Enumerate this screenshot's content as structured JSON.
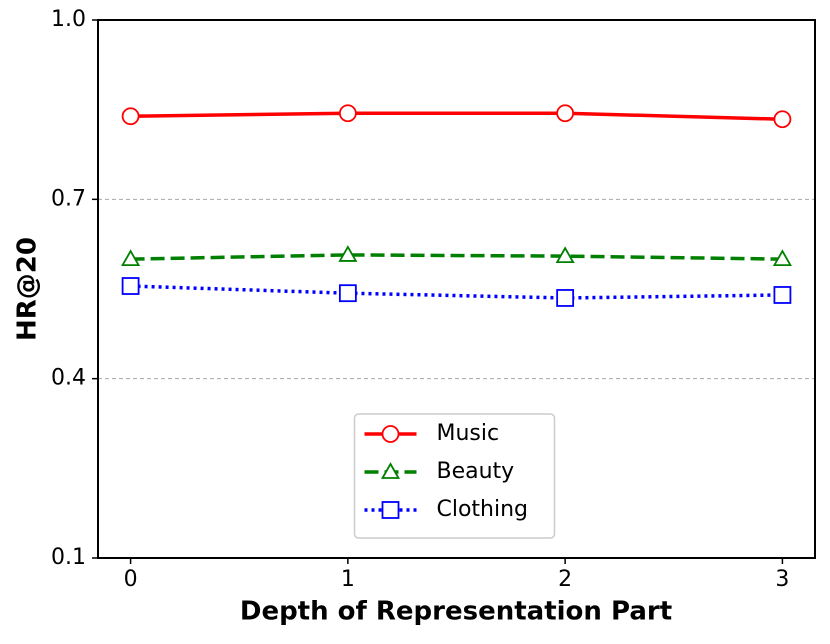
{
  "chart_data": {
    "type": "line",
    "xlabel": "Depth of Representation Part",
    "ylabel": "HR@20",
    "x": [
      0,
      1,
      2,
      3
    ],
    "series": [
      {
        "name": "Music",
        "color": "#ff0000",
        "marker": "circle",
        "linestyle": "solid",
        "values": [
          0.839,
          0.844,
          0.844,
          0.834
        ]
      },
      {
        "name": "Beauty",
        "color": "#008000",
        "marker": "triangle",
        "linestyle": "dashed",
        "values": [
          0.6,
          0.607,
          0.605,
          0.6
        ]
      },
      {
        "name": "Clothing",
        "color": "#0000ff",
        "marker": "square",
        "linestyle": "dotted",
        "values": [
          0.555,
          0.543,
          0.535,
          0.54
        ]
      }
    ],
    "xlim": [
      -0.15,
      3.15
    ],
    "ylim": [
      0.1,
      1.0
    ],
    "xticks": [
      0,
      1,
      2,
      3
    ],
    "yticks": [
      0.1,
      0.4,
      0.7,
      {
        "value": 1.0,
        "label": "1.0"
      }
    ],
    "grid": true,
    "legend": "lower center"
  }
}
